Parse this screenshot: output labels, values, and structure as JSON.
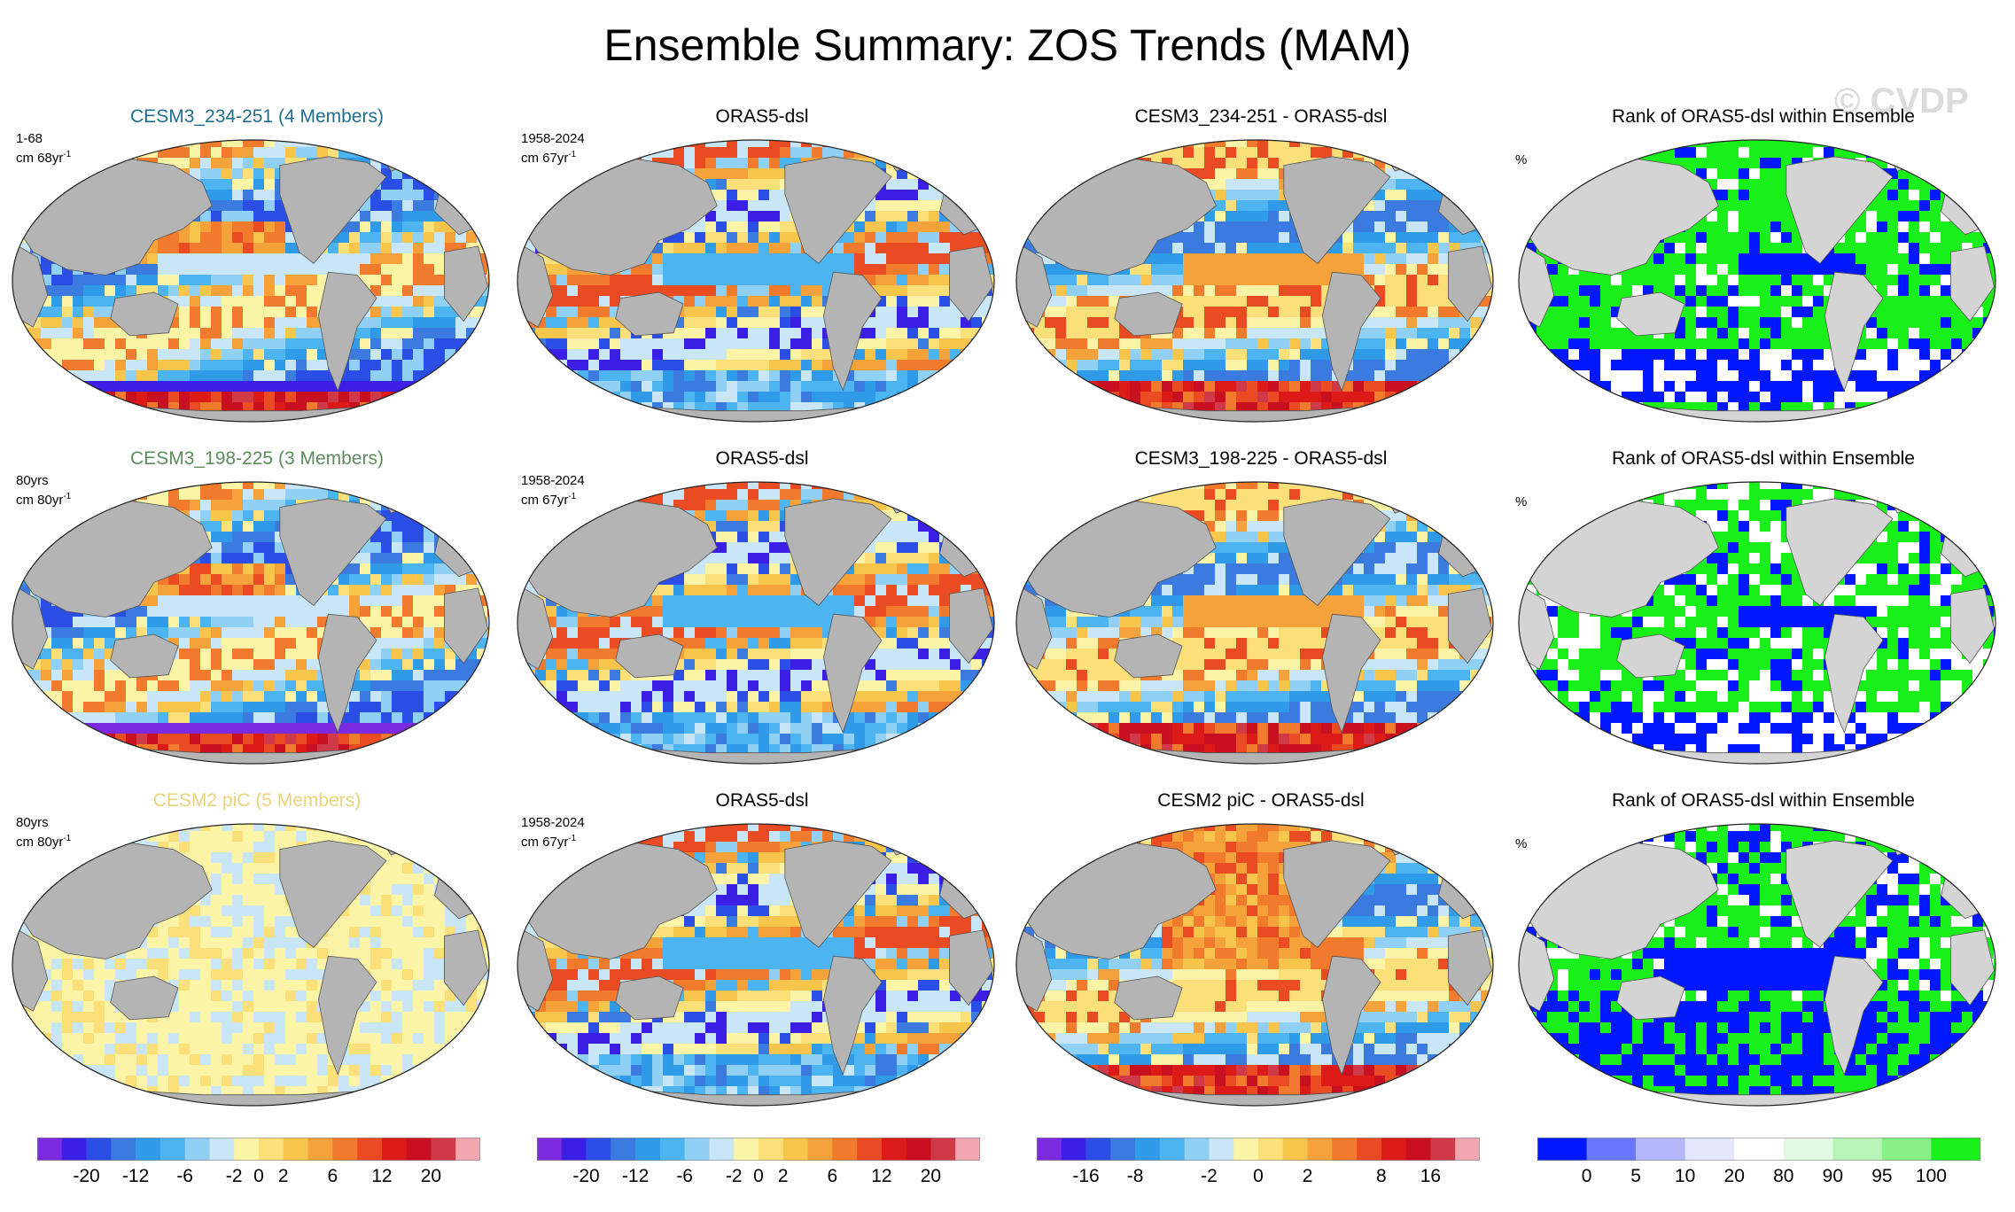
{
  "title": "Ensemble Summary: ZOS Trends (MAM)",
  "watermark": "© CVDP",
  "rows": [
    {
      "ensemble": {
        "title": "CESM3_234-251 (4 Members)",
        "title_color": "#1f6e8c",
        "label1": "1-68",
        "label2": "cm 68yr",
        "sup": "-1",
        "palette": "cesm3a"
      },
      "obs": {
        "title": "ORAS5-dsl",
        "label1": "1958-2024",
        "label2": "cm 67yr",
        "sup": "-1",
        "palette": "obs"
      },
      "diff": {
        "title": "CESM3_234-251 - ORAS5-dsl",
        "palette": "diff"
      },
      "rank": {
        "title": "Rank of ORAS5-dsl within Ensemble",
        "unit": "%",
        "palette": "rankA"
      }
    },
    {
      "ensemble": {
        "title": "CESM3_198-225 (3 Members)",
        "title_color": "#5e8c5e",
        "label1": "80yrs",
        "label2": "cm 80yr",
        "sup": "-1",
        "palette": "cesm3b"
      },
      "obs": {
        "title": "ORAS5-dsl",
        "label1": "1958-2024",
        "label2": "cm 67yr",
        "sup": "-1",
        "palette": "obs"
      },
      "diff": {
        "title": "CESM3_198-225 - ORAS5-dsl",
        "palette": "diff"
      },
      "rank": {
        "title": "Rank of ORAS5-dsl within Ensemble",
        "unit": "%",
        "palette": "rankB"
      }
    },
    {
      "ensemble": {
        "title": "CESM2 piC (5 Members)",
        "title_color": "#e8d47a",
        "label1": "80yrs",
        "label2": "cm 80yr",
        "sup": "-1",
        "palette": "pic"
      },
      "obs": {
        "title": "ORAS5-dsl",
        "label1": "1958-2024",
        "label2": "cm 67yr",
        "sup": "-1",
        "palette": "obs"
      },
      "diff": {
        "title": "CESM2 piC - ORAS5-dsl",
        "palette": "diffpic"
      },
      "rank": {
        "title": "Rank of ORAS5-dsl within Ensemble",
        "unit": "%",
        "palette": "rankC"
      }
    }
  ],
  "colorbars": [
    {
      "name": "trend",
      "colors": [
        "#7b2ae0",
        "#3b1fe6",
        "#2a4ee6",
        "#3b7be0",
        "#2f9ae8",
        "#4cb4f0",
        "#8fd0f4",
        "#c9e6f6",
        "#fbf4a6",
        "#fbe07a",
        "#f8c54c",
        "#f5a23a",
        "#f27a2c",
        "#ea4b22",
        "#dc1a18",
        "#c81020",
        "#d03a48",
        "#f2a6b0"
      ],
      "ticks": [
        "-20",
        "-12",
        "-6",
        "-2",
        "0",
        "2",
        "6",
        "12",
        "20"
      ],
      "tick_bounds": [
        2,
        4,
        6,
        8,
        9,
        10,
        12,
        14,
        16
      ]
    },
    {
      "name": "trend-obs",
      "colors": [
        "#7b2ae0",
        "#3b1fe6",
        "#2a4ee6",
        "#3b7be0",
        "#2f9ae8",
        "#4cb4f0",
        "#8fd0f4",
        "#c9e6f6",
        "#fbf4a6",
        "#fbe07a",
        "#f8c54c",
        "#f5a23a",
        "#f27a2c",
        "#ea4b22",
        "#dc1a18",
        "#c81020",
        "#d03a48",
        "#f2a6b0"
      ],
      "ticks": [
        "-20",
        "-12",
        "-6",
        "-2",
        "0",
        "2",
        "6",
        "12",
        "20"
      ],
      "tick_bounds": [
        2,
        4,
        6,
        8,
        9,
        10,
        12,
        14,
        16
      ]
    },
    {
      "name": "diff",
      "colors": [
        "#7b2ae0",
        "#3b1fe6",
        "#2a4ee6",
        "#3b7be0",
        "#2f9ae8",
        "#4cb4f0",
        "#8fd0f4",
        "#c9e6f6",
        "#fbf4a6",
        "#fbe07a",
        "#f8c54c",
        "#f5a23a",
        "#f27a2c",
        "#ea4b22",
        "#dc1a18",
        "#c81020",
        "#d03a48",
        "#f2a6b0"
      ],
      "ticks": [
        "-16",
        "-8",
        "-2",
        "0",
        "2",
        "8",
        "16"
      ],
      "tick_bounds": [
        2,
        4,
        7,
        9,
        11,
        14,
        16
      ]
    },
    {
      "name": "rank",
      "colors": [
        "#0018ff",
        "#6a78ff",
        "#b4b8fa",
        "#e4e6fb",
        "#ffffff",
        "#e2f8e2",
        "#b8f4b8",
        "#86f086",
        "#19f019"
      ],
      "ticks": [
        "0",
        "5",
        "10",
        "20",
        "80",
        "90",
        "95",
        "100"
      ],
      "tick_bounds": [
        1,
        2,
        3,
        4,
        5,
        6,
        7,
        8
      ]
    }
  ]
}
